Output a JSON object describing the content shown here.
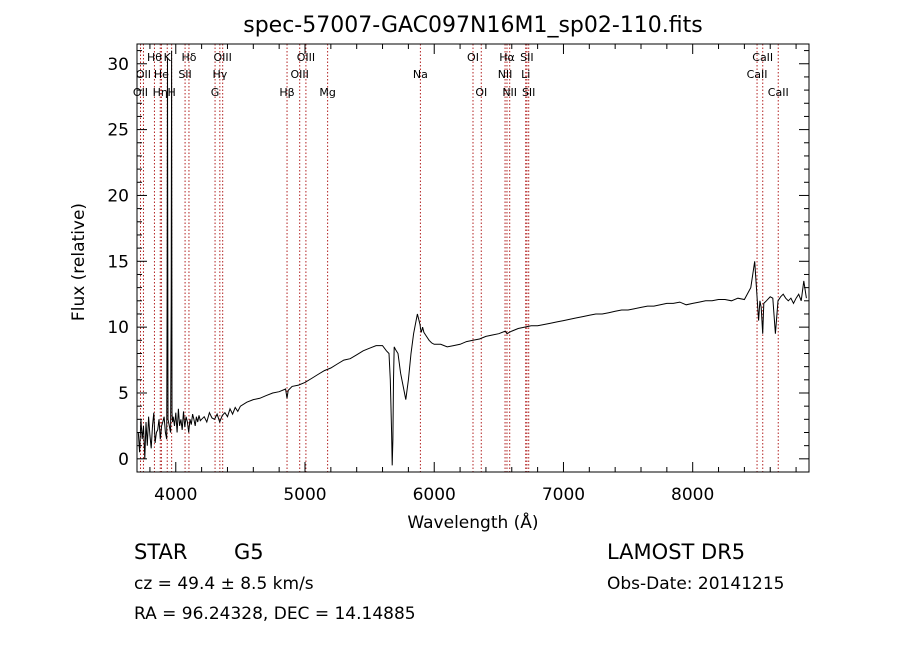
{
  "chart_data": {
    "type": "line",
    "title": "spec-57007-GAC097N16M1_sp02-110.fits",
    "xlabel": "Wavelength (Å)",
    "ylabel": "Flux (relative)",
    "xlim": [
      3700,
      8900
    ],
    "ylim": [
      -1,
      31.5
    ],
    "xticks": [
      4000,
      5000,
      6000,
      7000,
      8000
    ],
    "yticks": [
      0,
      5,
      10,
      15,
      20,
      25,
      30
    ],
    "grid": false,
    "line_color": "#000000",
    "marker_line_color": "#b22222",
    "spectrum": {
      "x": [
        3710,
        3720,
        3730,
        3740,
        3750,
        3760,
        3770,
        3780,
        3790,
        3800,
        3810,
        3820,
        3830,
        3840,
        3850,
        3860,
        3870,
        3880,
        3890,
        3900,
        3910,
        3920,
        3930,
        3933,
        3936,
        3940,
        3950,
        3960,
        3965,
        3968,
        3971,
        3975,
        3980,
        3990,
        4000,
        4010,
        4020,
        4030,
        4040,
        4050,
        4060,
        4070,
        4080,
        4090,
        4100,
        4110,
        4120,
        4130,
        4140,
        4150,
        4160,
        4170,
        4180,
        4190,
        4200,
        4220,
        4240,
        4260,
        4280,
        4300,
        4320,
        4340,
        4360,
        4380,
        4400,
        4420,
        4440,
        4460,
        4480,
        4500,
        4550,
        4600,
        4650,
        4700,
        4750,
        4800,
        4850,
        4861,
        4870,
        4900,
        4950,
        5000,
        5050,
        5100,
        5150,
        5200,
        5250,
        5300,
        5350,
        5400,
        5450,
        5500,
        5550,
        5600,
        5630,
        5650,
        5660,
        5670,
        5675,
        5680,
        5685,
        5690,
        5700,
        5720,
        5740,
        5760,
        5780,
        5800,
        5820,
        5840,
        5860,
        5870,
        5880,
        5890,
        5895,
        5900,
        5910,
        5920,
        5940,
        5960,
        5980,
        6000,
        6050,
        6100,
        6150,
        6200,
        6250,
        6300,
        6350,
        6400,
        6450,
        6500,
        6550,
        6563,
        6580,
        6600,
        6650,
        6700,
        6750,
        6800,
        6850,
        6900,
        6950,
        7000,
        7050,
        7100,
        7150,
        7200,
        7250,
        7300,
        7350,
        7400,
        7450,
        7500,
        7550,
        7600,
        7650,
        7700,
        7750,
        7800,
        7850,
        7900,
        7950,
        8000,
        8050,
        8100,
        8150,
        8200,
        8250,
        8300,
        8350,
        8400,
        8450,
        8480,
        8500,
        8510,
        8520,
        8530,
        8542,
        8550,
        8570,
        8600,
        8620,
        8640,
        8660,
        8680,
        8700,
        8720,
        8740,
        8760,
        8780,
        8800,
        8820,
        8840,
        8860,
        8880
      ],
      "y": [
        2.0,
        0.5,
        3.0,
        1.5,
        2.5,
        0.0,
        2.8,
        1.0,
        3.2,
        1.8,
        0.8,
        2.5,
        3.5,
        1.2,
        2.0,
        2.2,
        3.0,
        1.5,
        2.5,
        2.8,
        3.2,
        2.0,
        1.5,
        12.0,
        30.5,
        3.0,
        2.5,
        2.0,
        12.0,
        31.0,
        3.5,
        2.8,
        3.2,
        2.5,
        3.5,
        2.0,
        3.8,
        2.5,
        3.0,
        2.2,
        3.6,
        2.4,
        3.2,
        2.8,
        2.0,
        3.0,
        2.6,
        3.4,
        3.0,
        2.5,
        3.2,
        2.8,
        3.3,
        2.9,
        3.0,
        3.2,
        2.8,
        3.5,
        3.1,
        3.0,
        3.4,
        2.8,
        3.3,
        3.5,
        3.2,
        3.8,
        3.4,
        3.9,
        3.6,
        4.0,
        4.3,
        4.5,
        4.6,
        4.8,
        5.0,
        5.1,
        5.3,
        4.6,
        5.2,
        5.5,
        5.6,
        5.8,
        6.1,
        6.4,
        6.7,
        6.9,
        7.2,
        7.5,
        7.6,
        7.9,
        8.2,
        8.4,
        8.6,
        8.6,
        8.2,
        8.0,
        6.0,
        2.0,
        -0.5,
        1.5,
        6.0,
        8.5,
        8.3,
        8.0,
        6.5,
        5.5,
        4.5,
        6.0,
        8.0,
        9.5,
        10.5,
        11.0,
        10.6,
        10.2,
        9.8,
        9.6,
        10.0,
        9.6,
        9.3,
        9.0,
        8.8,
        8.7,
        8.7,
        8.5,
        8.6,
        8.7,
        8.9,
        9.0,
        9.1,
        9.3,
        9.4,
        9.5,
        9.7,
        9.5,
        9.6,
        9.7,
        9.9,
        10.0,
        10.1,
        10.1,
        10.2,
        10.3,
        10.4,
        10.5,
        10.6,
        10.7,
        10.8,
        10.9,
        11.0,
        11.0,
        11.1,
        11.2,
        11.3,
        11.3,
        11.4,
        11.5,
        11.6,
        11.6,
        11.7,
        11.8,
        11.8,
        11.9,
        11.7,
        11.8,
        11.9,
        12.0,
        12.0,
        12.1,
        12.1,
        12.0,
        12.2,
        12.1,
        13.0,
        15.0,
        12.0,
        10.5,
        12.0,
        11.5,
        9.5,
        11.8,
        12.0,
        12.3,
        12.2,
        9.5,
        12.0,
        12.3,
        12.5,
        12.2,
        12.0,
        12.2,
        11.8,
        12.2,
        12.5,
        12.0,
        13.5,
        12.2
      ]
    },
    "lines": [
      {
        "wl": 3727,
        "label": "OII",
        "row": 2,
        "anchor": "mid"
      },
      {
        "wl": 3750,
        "label": "OII",
        "row": 1,
        "anchor": "mid"
      },
      {
        "wl": 3835,
        "label": "Hθ",
        "row": 0,
        "anchor": "mid"
      },
      {
        "wl": 3889,
        "label": "He",
        "row": 1,
        "anchor": "mid"
      },
      {
        "wl": 3880,
        "label": "Hη",
        "row": 2,
        "anchor": "mid"
      },
      {
        "wl": 3934,
        "label": "K",
        "row": 0,
        "anchor": "mid"
      },
      {
        "wl": 3968,
        "label": "H",
        "row": 2,
        "anchor": "mid"
      },
      {
        "wl": 4102,
        "label": "Hδ",
        "row": 0,
        "anchor": "mid"
      },
      {
        "wl": 4072,
        "label": "SII",
        "row": 1,
        "anchor": "mid"
      },
      {
        "wl": 4363,
        "label": "OIII",
        "row": 0,
        "anchor": "mid"
      },
      {
        "wl": 4341,
        "label": "Hγ",
        "row": 1,
        "anchor": "mid"
      },
      {
        "wl": 4304,
        "label": "G",
        "row": 2,
        "anchor": "mid"
      },
      {
        "wl": 4861,
        "label": "Hβ",
        "row": 2,
        "anchor": "mid"
      },
      {
        "wl": 4959,
        "label": "OIII",
        "row": 1,
        "anchor": "mid"
      },
      {
        "wl": 5007,
        "label": "OIII",
        "row": 0,
        "anchor": "mid"
      },
      {
        "wl": 5175,
        "label": "Mg",
        "row": 2,
        "anchor": "mid"
      },
      {
        "wl": 5893,
        "label": "Na",
        "row": 1,
        "anchor": "mid"
      },
      {
        "wl": 6300,
        "label": "OI",
        "row": 0,
        "anchor": "mid"
      },
      {
        "wl": 6364,
        "label": "OI",
        "row": 2,
        "anchor": "mid"
      },
      {
        "wl": 6548,
        "label": "NII",
        "row": 1,
        "anchor": "mid"
      },
      {
        "wl": 6563,
        "label": "Hα",
        "row": 0,
        "anchor": "mid"
      },
      {
        "wl": 6584,
        "label": "NII",
        "row": 2,
        "anchor": "mid"
      },
      {
        "wl": 6708,
        "label": "Li",
        "row": 1,
        "anchor": "mid"
      },
      {
        "wl": 6717,
        "label": "SII",
        "row": 0,
        "anchor": "mid"
      },
      {
        "wl": 6731,
        "label": "SII",
        "row": 2,
        "anchor": "mid"
      },
      {
        "wl": 8498,
        "label": "CaII",
        "row": 1,
        "anchor": "mid"
      },
      {
        "wl": 8542,
        "label": "CaII",
        "row": 0,
        "anchor": "mid"
      },
      {
        "wl": 8662,
        "label": "CaII",
        "row": 2,
        "anchor": "mid"
      }
    ]
  },
  "info": {
    "class_label": "STAR",
    "subclass_label": "G5",
    "survey": "LAMOST DR5",
    "cz": "cz = 49.4 ± 8.5 km/s",
    "obs_date": "Obs-Date: 20141215",
    "coords": "RA =  96.24328, DEC =  14.14885"
  }
}
